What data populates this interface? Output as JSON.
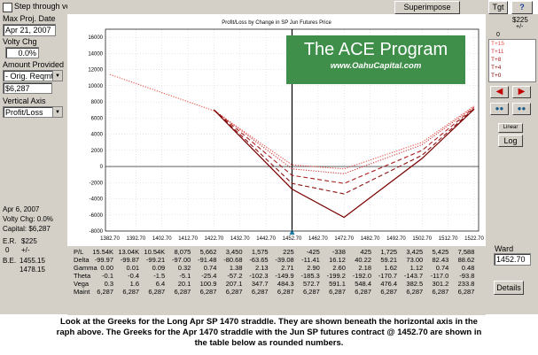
{
  "left_panel": {
    "step_label": "Step through volatilities",
    "max_date_label": "Max Proj. Date",
    "max_date_value": "Apr 21, 2007",
    "volty_label": "Volty Chg",
    "volty_value": "0.0%",
    "amount_label": "Amount Provided",
    "amount_select": "- Orig. Reqmt",
    "amount_value": "$6,287",
    "vertical_label": "Vertical Axis",
    "vertical_select": "Profit/Loss",
    "info_date": "Apr 6, 2007",
    "info_volty": "Volty Chg: 0.0%",
    "info_capital": "Capital: $6,287",
    "er_label": "E.R.",
    "er_value": "$225",
    "er_sub_label": "0",
    "er_sub_value": "+/-",
    "be_label": "B.E.",
    "be_values": [
      "1455.15",
      "1478.15"
    ]
  },
  "top": {
    "superimpose_button": "Superimpose Prev",
    "tgt_button": "Tgt",
    "help_button": "?"
  },
  "right_panel": {
    "value_top": "$225",
    "value_sub": "+/-",
    "value_zero": "0",
    "legend": [
      "T+15",
      "T+11",
      "T+8",
      "T+4",
      "T+0"
    ],
    "linear_label": "Linear",
    "log_label": "Log",
    "ward_label": "Ward",
    "ward_value": "1452.70",
    "details_button": "Details"
  },
  "chart_data": {
    "type": "line",
    "title": "Profit/Loss by Change in SP Jun Futures Price",
    "xlabel": "",
    "ylabel": "",
    "x": [
      1382.7,
      1392.7,
      1402.7,
      1412.7,
      1422.7,
      1432.7,
      1442.7,
      1452.7,
      1462.7,
      1472.7,
      1482.7,
      1492.7,
      1502.7,
      1512.7,
      1522.7
    ],
    "x_tick_labels": [
      "1382.70",
      "1392.70",
      "1402.70",
      "1412.70",
      "1422.70",
      "1432.70",
      "1442.70",
      "1452.70",
      "1462.70",
      "1472.70",
      "1482.70",
      "1492.70",
      "1502.70",
      "1512.70",
      "1522.70"
    ],
    "ylim": [
      -8000,
      17000
    ],
    "y_ticks": [
      -8000,
      -6000,
      -4000,
      -2000,
      0,
      2000,
      4000,
      6000,
      8000,
      10000,
      12000,
      14000,
      16000
    ],
    "vertical_marker_x": 1452.7,
    "series": [
      {
        "name": "T+15",
        "style": "dotted",
        "points": [
          [
            1382.7,
            11400
          ],
          [
            1422.7,
            6900
          ],
          [
            1452.7,
            200
          ],
          [
            1472.7,
            -300
          ],
          [
            1502.7,
            3000
          ],
          [
            1522.7,
            7500
          ]
        ]
      },
      {
        "name": "T+11",
        "style": "dotted",
        "points": [
          [
            1422.7,
            7000
          ],
          [
            1452.7,
            -300
          ],
          [
            1472.7,
            -900
          ],
          [
            1502.7,
            2700
          ],
          [
            1522.7,
            7400
          ]
        ]
      },
      {
        "name": "T+8",
        "style": "dashed",
        "points": [
          [
            1422.7,
            7000
          ],
          [
            1452.7,
            -1100
          ],
          [
            1472.7,
            -2100
          ],
          [
            1502.7,
            2000
          ],
          [
            1522.7,
            7300
          ]
        ]
      },
      {
        "name": "T+4",
        "style": "dashed",
        "points": [
          [
            1422.7,
            7000
          ],
          [
            1452.7,
            -2100
          ],
          [
            1472.7,
            -3400
          ],
          [
            1502.7,
            1400
          ],
          [
            1522.7,
            7200
          ]
        ]
      },
      {
        "name": "T+0",
        "style": "solid",
        "points": [
          [
            1422.7,
            7000
          ],
          [
            1452.7,
            -2800
          ],
          [
            1472.7,
            -6300
          ],
          [
            1502.7,
            1000
          ],
          [
            1522.7,
            7100
          ]
        ]
      }
    ],
    "series_colors": [
      "#e8504a",
      "#d03838",
      "#a82020",
      "#8a1212",
      "#7a0000"
    ]
  },
  "watermark": {
    "title": "The ACE Program",
    "url": "www.OahuCapital.com",
    "bg": "#3f8f4a"
  },
  "greeks": {
    "row_labels": [
      "P/L",
      "Delta",
      "Gamma",
      "Theta",
      "Vega",
      "Maint"
    ],
    "columns": [
      [
        "15.54K",
        "-99.97",
        "0.00",
        "-0.1",
        "0.3",
        "6,287"
      ],
      [
        "13.04K",
        "-99.87",
        "0.01",
        "-0.4",
        "1.6",
        "6,287"
      ],
      [
        "10.54K",
        "-99.21",
        "0.09",
        "-1.5",
        "6.4",
        "6,287"
      ],
      [
        "8,075",
        "-97.00",
        "0.32",
        "-5.1",
        "20.1",
        "6,287"
      ],
      [
        "5,662",
        "-91.48",
        "0.74",
        "-25.4",
        "100.9",
        "6,287"
      ],
      [
        "3,450",
        "-80.68",
        "1.38",
        "-57.2",
        "207.1",
        "6,287"
      ],
      [
        "1,575",
        "-63.65",
        "2.13",
        "-102.3",
        "347.7",
        "6,287"
      ],
      [
        "225",
        "-39.08",
        "2.71",
        "-149.9",
        "484.3",
        "6,287"
      ],
      [
        "-425",
        "-11.41",
        "2.90",
        "-185.3",
        "572.7",
        "6,287"
      ],
      [
        "-338",
        "16.12",
        "2.60",
        "-199.2",
        "591.1",
        "6,287"
      ],
      [
        "425",
        "40.22",
        "2.18",
        "-192.0",
        "548.4",
        "6,287"
      ],
      [
        "1,725",
        "59.21",
        "1.62",
        "-170.7",
        "476.4",
        "6,287"
      ],
      [
        "3,425",
        "73.00",
        "1.12",
        "-143.7",
        "382.5",
        "6,287"
      ],
      [
        "5,425",
        "82.43",
        "0.74",
        "-117.0",
        "301.2",
        "6,287"
      ],
      [
        "7,588",
        "88.62",
        "0.48",
        "-93.8",
        "233.8",
        "6,287"
      ]
    ]
  },
  "caption": {
    "line1": "Look at the Greeks for the Long Apr SP 1470 straddle.  They are shown beneath the horizontal axis in the",
    "line2": "raph above.  The Greeks for the Apr 1470 straddle with the Jun SP futures contract @ 1452.70 are shown in",
    "line3": "the table below as rounded numbers."
  }
}
